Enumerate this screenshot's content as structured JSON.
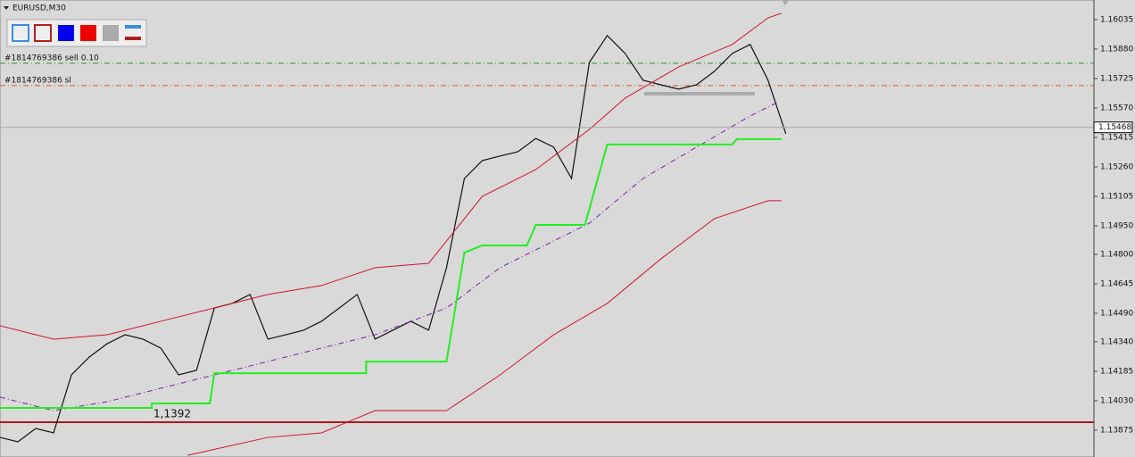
{
  "chart_data": {
    "type": "line",
    "title": "EURUSD,M30",
    "ylim": [
      1.13734,
      1.16138
    ],
    "xlim": [
      0,
      245
    ],
    "yticks": [
      1.16035,
      {
        "value": 1.1588,
        "label": "1.15880"
      },
      1.15725,
      {
        "value": 1.1557,
        "label": "1.15570"
      },
      1.15415,
      {
        "value": 1.1526,
        "label": "1.15260"
      },
      1.15105,
      {
        "value": 1.1495,
        "label": "1.14950"
      },
      {
        "value": 1.148,
        "label": "1.14800"
      },
      1.14645,
      {
        "value": 1.1449,
        "label": "1.14490"
      },
      {
        "value": 1.1434,
        "label": "1.14340"
      },
      1.14185,
      {
        "value": 1.1403,
        "label": "1.14030"
      },
      1.13875
    ],
    "grid": false,
    "series": [
      {
        "color": "#111111",
        "style": "solid",
        "width": 1.2,
        "x": [
          0,
          4,
          8,
          12,
          16,
          20,
          24,
          28,
          32,
          36,
          40,
          44,
          48,
          52,
          56,
          60,
          64,
          68,
          72,
          76,
          80,
          84,
          88,
          92,
          96,
          100,
          104,
          108,
          112,
          116,
          120,
          124,
          128,
          132,
          136,
          140,
          144,
          148,
          152,
          156,
          160,
          164,
          168,
          172,
          176
        ],
        "values": [
          1.13837,
          1.13814,
          1.13884,
          1.13861,
          1.14166,
          1.1426,
          1.1433,
          1.14377,
          1.14354,
          1.14307,
          1.14166,
          1.1419,
          1.14518,
          1.14542,
          1.14589,
          1.14354,
          1.14377,
          1.14401,
          1.14448,
          1.14518,
          1.14589,
          1.14354,
          1.14401,
          1.14448,
          1.14401,
          1.1473,
          1.15199,
          1.15293,
          1.15317,
          1.1534,
          1.1541,
          1.15364,
          1.15199,
          1.1581,
          1.15951,
          1.15857,
          1.15716,
          1.15692,
          1.15669,
          1.15692,
          1.15763,
          1.15857,
          1.15904,
          1.15716,
          1.15434
        ]
      },
      {
        "color": "#d0142c",
        "style": "solid",
        "width": 1,
        "x": [
          0,
          12,
          24,
          36,
          48,
          60,
          72,
          84,
          96,
          108,
          120,
          132,
          140,
          152,
          164,
          172,
          175
        ],
        "values": [
          1.14424,
          1.14354,
          1.14377,
          1.14448,
          1.14518,
          1.14589,
          1.14636,
          1.1473,
          1.14753,
          1.15105,
          1.15246,
          1.15457,
          1.15622,
          1.15786,
          1.15904,
          1.16044,
          1.16068
        ]
      },
      {
        "color": "#d0142c",
        "style": "solid",
        "width": 1,
        "x": [
          42,
          60,
          72,
          84,
          100,
          112,
          124,
          136,
          148,
          160,
          172,
          175
        ],
        "values": [
          1.13743,
          1.13837,
          1.13861,
          1.13978,
          1.13978,
          1.14166,
          1.14377,
          1.14542,
          1.14776,
          1.14988,
          1.15082,
          1.15082
        ]
      },
      {
        "color": "#7a1fa2",
        "style": "dashdot",
        "width": 1,
        "x": [
          0,
          12,
          24,
          48,
          72,
          84,
          100,
          112,
          132,
          144,
          156,
          168,
          174
        ],
        "values": [
          1.14049,
          1.13978,
          1.14025,
          1.14166,
          1.14307,
          1.14377,
          1.14518,
          1.1473,
          1.14964,
          1.15199,
          1.15364,
          1.15528,
          1.15598
        ]
      },
      {
        "color": "#22ee22",
        "style": "solid",
        "width": 2,
        "x": [
          0,
          34,
          34,
          47,
          48,
          82,
          82,
          100,
          104,
          108,
          118,
          120,
          131,
          136,
          164,
          165,
          175
        ],
        "values": [
          1.13992,
          1.13992,
          1.14016,
          1.14016,
          1.14175,
          1.14175,
          1.14236,
          1.14236,
          1.14809,
          1.14847,
          1.14847,
          1.14955,
          1.14955,
          1.15378,
          1.15378,
          1.15406,
          1.15406
        ]
      }
    ],
    "hlines": [
      {
        "value": 1.15805,
        "label": "#1814769386 sell 0.10",
        "color": "#2e8b2e",
        "style": "dashdot"
      },
      {
        "value": 1.15688,
        "label": "#1814769386 sl",
        "color": "#e0562a",
        "style": "dashdot"
      },
      {
        "value": 1.13917,
        "color": "#b01818",
        "style": "solid"
      }
    ],
    "annotation": "1,1392",
    "last_price": 1.15468
  }
}
